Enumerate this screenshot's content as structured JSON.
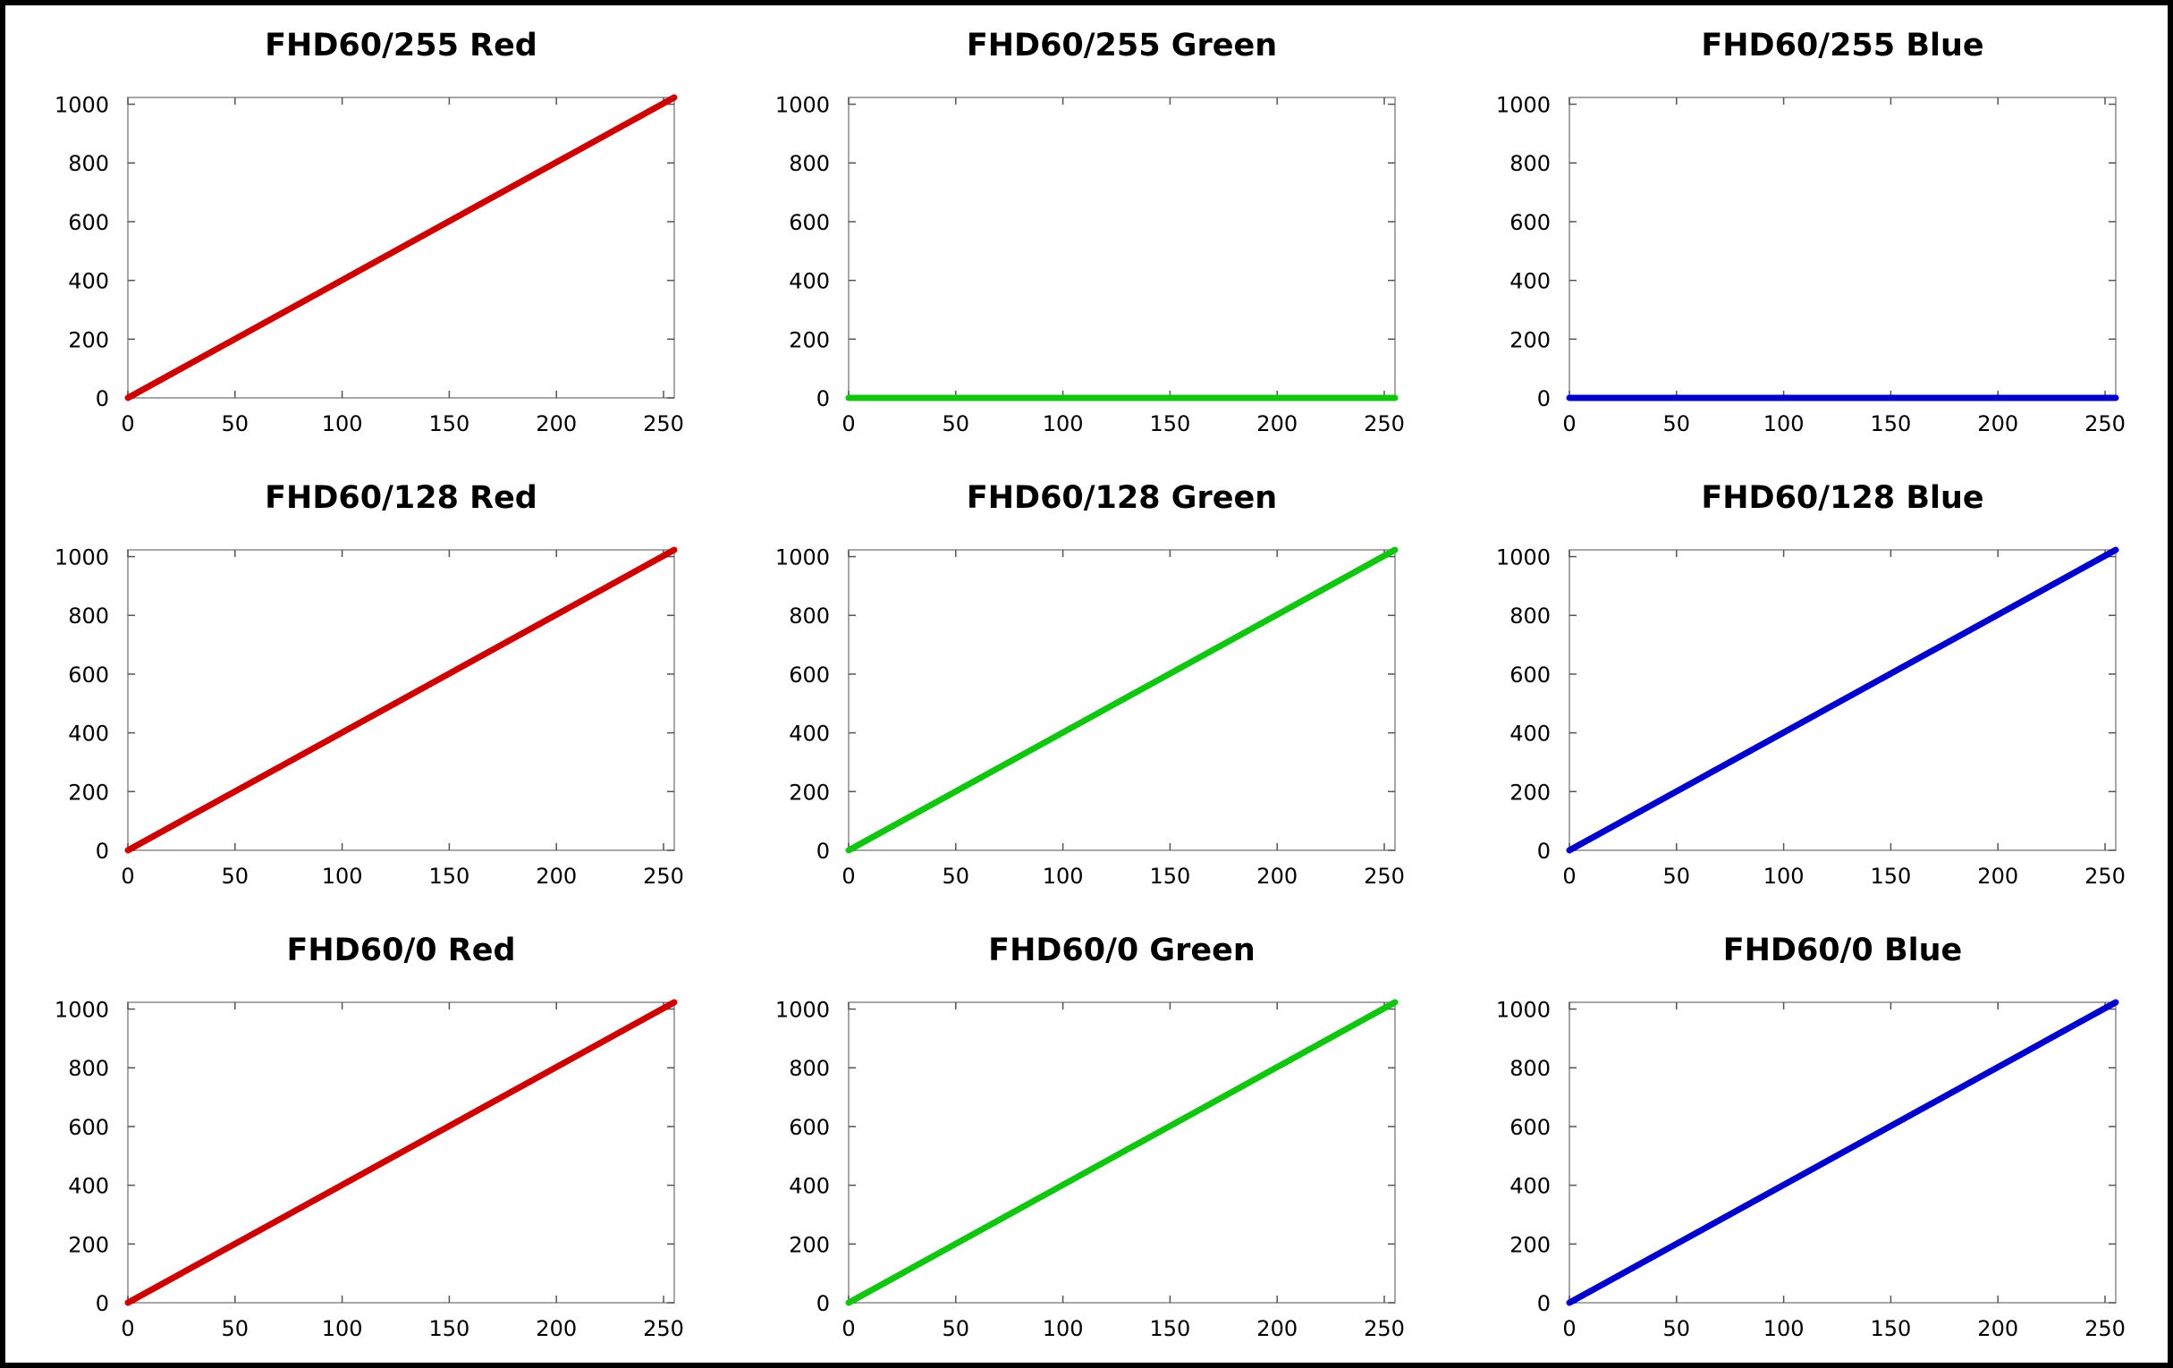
{
  "chart_data": [
    {
      "type": "line",
      "title": "FHD60/255 Red",
      "x": [
        0,
        255
      ],
      "series": [
        {
          "values": [
            0,
            1023
          ],
          "color": "#cc0000"
        }
      ],
      "xlim": [
        0,
        255
      ],
      "ylim": [
        0,
        1023
      ],
      "xticks": [
        0,
        50,
        100,
        150,
        200,
        250
      ],
      "yticks": [
        0,
        200,
        400,
        600,
        800,
        1000
      ],
      "grid": false
    },
    {
      "type": "line",
      "title": "FHD60/255 Green",
      "x": [
        0,
        255
      ],
      "series": [
        {
          "values": [
            0,
            0
          ],
          "color": "#11c511"
        }
      ],
      "xlim": [
        0,
        255
      ],
      "ylim": [
        0,
        1023
      ],
      "xticks": [
        0,
        50,
        100,
        150,
        200,
        250
      ],
      "yticks": [
        0,
        200,
        400,
        600,
        800,
        1000
      ],
      "grid": false
    },
    {
      "type": "line",
      "title": "FHD60/255 Blue",
      "x": [
        0,
        255
      ],
      "series": [
        {
          "values": [
            0,
            0
          ],
          "color": "#0000cc"
        }
      ],
      "xlim": [
        0,
        255
      ],
      "ylim": [
        0,
        1023
      ],
      "xticks": [
        0,
        50,
        100,
        150,
        200,
        250
      ],
      "yticks": [
        0,
        200,
        400,
        600,
        800,
        1000
      ],
      "grid": false
    },
    {
      "type": "line",
      "title": "FHD60/128 Red",
      "x": [
        0,
        255
      ],
      "series": [
        {
          "values": [
            0,
            1023
          ],
          "color": "#cc0000"
        }
      ],
      "xlim": [
        0,
        255
      ],
      "ylim": [
        0,
        1023
      ],
      "xticks": [
        0,
        50,
        100,
        150,
        200,
        250
      ],
      "yticks": [
        0,
        200,
        400,
        600,
        800,
        1000
      ],
      "grid": false
    },
    {
      "type": "line",
      "title": "FHD60/128 Green",
      "x": [
        0,
        255
      ],
      "series": [
        {
          "values": [
            0,
            1023
          ],
          "color": "#11c511"
        }
      ],
      "xlim": [
        0,
        255
      ],
      "ylim": [
        0,
        1023
      ],
      "xticks": [
        0,
        50,
        100,
        150,
        200,
        250
      ],
      "yticks": [
        0,
        200,
        400,
        600,
        800,
        1000
      ],
      "grid": false
    },
    {
      "type": "line",
      "title": "FHD60/128 Blue",
      "x": [
        0,
        255
      ],
      "series": [
        {
          "values": [
            0,
            1023
          ],
          "color": "#0000cc"
        }
      ],
      "xlim": [
        0,
        255
      ],
      "ylim": [
        0,
        1023
      ],
      "xticks": [
        0,
        50,
        100,
        150,
        200,
        250
      ],
      "yticks": [
        0,
        200,
        400,
        600,
        800,
        1000
      ],
      "grid": false
    },
    {
      "type": "line",
      "title": "FHD60/0 Red",
      "x": [
        0,
        255
      ],
      "series": [
        {
          "values": [
            0,
            1023
          ],
          "color": "#cc0000"
        }
      ],
      "xlim": [
        0,
        255
      ],
      "ylim": [
        0,
        1023
      ],
      "xticks": [
        0,
        50,
        100,
        150,
        200,
        250
      ],
      "yticks": [
        0,
        200,
        400,
        600,
        800,
        1000
      ],
      "grid": false
    },
    {
      "type": "line",
      "title": "FHD60/0 Green",
      "x": [
        0,
        255
      ],
      "series": [
        {
          "values": [
            0,
            1023
          ],
          "color": "#11c511"
        }
      ],
      "xlim": [
        0,
        255
      ],
      "ylim": [
        0,
        1023
      ],
      "xticks": [
        0,
        50,
        100,
        150,
        200,
        250
      ],
      "yticks": [
        0,
        200,
        400,
        600,
        800,
        1000
      ],
      "grid": false
    },
    {
      "type": "line",
      "title": "FHD60/0 Blue",
      "x": [
        0,
        255
      ],
      "series": [
        {
          "values": [
            0,
            1023
          ],
          "color": "#0000cc"
        }
      ],
      "xlim": [
        0,
        255
      ],
      "ylim": [
        0,
        1023
      ],
      "xticks": [
        0,
        50,
        100,
        150,
        200,
        250
      ],
      "yticks": [
        0,
        200,
        400,
        600,
        800,
        1000
      ],
      "grid": false
    }
  ]
}
